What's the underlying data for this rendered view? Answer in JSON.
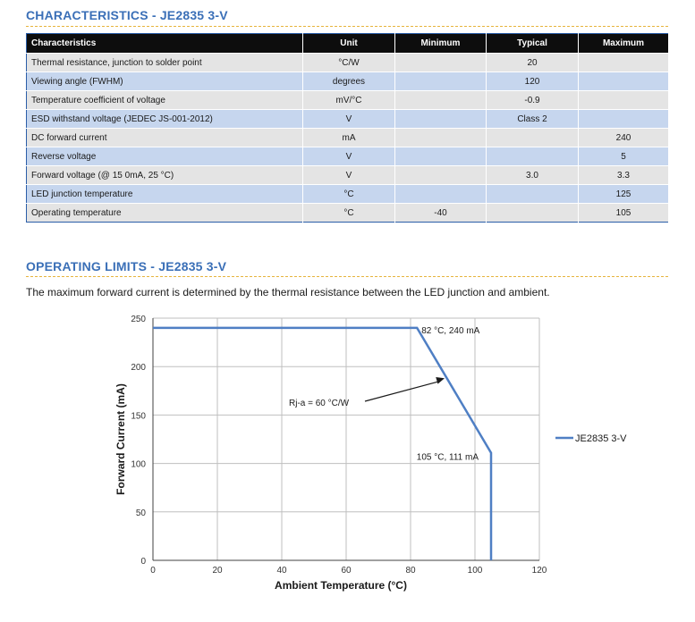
{
  "characteristics": {
    "title": "CHARACTERISTICS - JE2835 3-V",
    "headers": [
      "Characteristics",
      "Unit",
      "Minimum",
      "Typical",
      "Maximum"
    ],
    "rows": [
      [
        "Thermal resistance, junction to solder point",
        "°C/W",
        "",
        "20",
        ""
      ],
      [
        "Viewing angle (FWHM)",
        "degrees",
        "",
        "120",
        ""
      ],
      [
        "Temperature coefficient of voltage",
        "mV/°C",
        "",
        "-0.9",
        ""
      ],
      [
        "ESD withstand voltage (JEDEC JS-001-2012)",
        "V",
        "",
        "Class 2",
        ""
      ],
      [
        "DC forward current",
        "mA",
        "",
        "",
        "240"
      ],
      [
        "Reverse voltage",
        "V",
        "",
        "",
        "5"
      ],
      [
        "Forward voltage (@ 15 0mA, 25 °C)",
        "V",
        "",
        "3.0",
        "3.3"
      ],
      [
        "LED junction temperature",
        "°C",
        "",
        "",
        "125"
      ],
      [
        "Operating temperature",
        "°C",
        "-40",
        "",
        "105"
      ]
    ]
  },
  "operating_limits": {
    "title": "OPERATING LIMITS - JE2835 3-V",
    "description": "The maximum forward current is determined by the thermal resistance between the LED junction and ambient."
  },
  "chart_data": {
    "type": "line",
    "title": "",
    "xlabel": "Ambient Temperature (°C)",
    "ylabel": "Forward Current (mA)",
    "xlim": [
      0,
      120
    ],
    "ylim": [
      0,
      250
    ],
    "xticks": [
      0,
      20,
      40,
      60,
      80,
      100,
      120
    ],
    "yticks": [
      0,
      50,
      100,
      150,
      200,
      250
    ],
    "grid": true,
    "legend": "right",
    "series": [
      {
        "name": "JE2835 3-V",
        "color": "#4f7fc4",
        "x": [
          0,
          82,
          105,
          105
        ],
        "y": [
          240,
          240,
          111,
          0
        ]
      }
    ],
    "annotations": [
      {
        "text": "82 °C, 240 mA",
        "x": 82,
        "y": 240
      },
      {
        "text": "105 °C, 111 mA",
        "x": 105,
        "y": 111
      },
      {
        "text": "Rj-a = 60 °C/W",
        "x": 90,
        "y": 187
      }
    ]
  }
}
